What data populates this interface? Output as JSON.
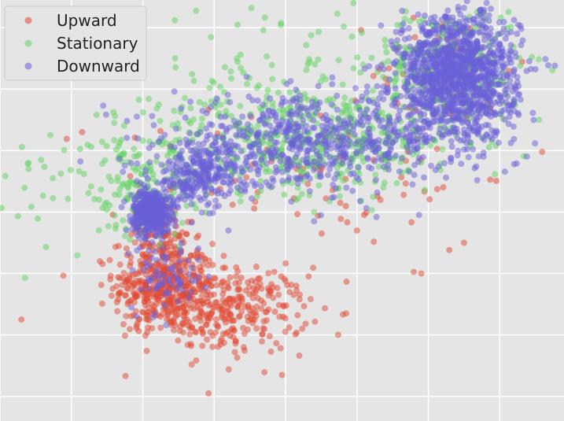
{
  "chart_data": {
    "type": "scatter",
    "title": "",
    "xlabel": "",
    "ylabel": "",
    "xlim": [
      -1.0,
      6.9
    ],
    "ylim": [
      -4.4,
      2.45
    ],
    "grid": true,
    "legend": {
      "placement": "top-left",
      "entries": [
        "Upward",
        "Stationary",
        "Downward"
      ]
    },
    "series": [
      {
        "name": "Upward",
        "color": "#e24a33",
        "clusters": [
          {
            "center": [
              1.3,
              -2.2
            ],
            "spread": [
              0.35,
              0.35
            ],
            "count": 380
          },
          {
            "center": [
              2.2,
              -2.6
            ],
            "spread": [
              0.55,
              0.35
            ],
            "count": 320
          },
          {
            "center": [
              1.2,
              -1.4
            ],
            "spread": [
              0.25,
              0.35
            ],
            "count": 120
          },
          {
            "center": [
              3.5,
              -0.4
            ],
            "spread": [
              1.4,
              0.6
            ],
            "count": 70
          },
          {
            "center": [
              5.2,
              1.3
            ],
            "spread": [
              0.5,
              0.5
            ],
            "count": 45
          }
        ],
        "points": [
          [
            -0.7,
            -2.75
          ],
          [
            0.15,
            0.3
          ],
          [
            5.5,
            -1.5
          ],
          [
            4.9,
            -2.0
          ],
          [
            3.15,
            -2.2
          ],
          [
            4.0,
            -1.3
          ]
        ]
      },
      {
        "name": "Stationary",
        "color": "#5fd35f",
        "clusters": [
          {
            "center": [
              3.3,
              0.15
            ],
            "spread": [
              1.15,
              0.42
            ],
            "count": 450
          },
          {
            "center": [
              5.3,
              1.35
            ],
            "spread": [
              0.5,
              0.5
            ],
            "count": 260
          },
          {
            "center": [
              1.0,
              -0.7
            ],
            "spread": [
              0.35,
              0.35
            ],
            "count": 120
          },
          {
            "center": [
              2.8,
              1.1
            ],
            "spread": [
              1.1,
              0.7
            ],
            "count": 110
          },
          {
            "center": [
              0.3,
              -0.5
            ],
            "spread": [
              0.8,
              0.6
            ],
            "count": 50
          }
        ],
        "points": [
          [
            -0.6,
            -0.2
          ],
          [
            -0.6,
            -0.3
          ],
          [
            0.6,
            0.45
          ],
          [
            6.55,
            0.5
          ],
          [
            3.95,
            2.4
          ],
          [
            4.4,
            1.7
          ],
          [
            3.4,
            -1.0
          ]
        ]
      },
      {
        "name": "Downward",
        "color": "#6a5fd8",
        "clusters": [
          {
            "center": [
              1.12,
              -1.0
            ],
            "spread": [
              0.13,
              0.17
            ],
            "count": 520
          },
          {
            "center": [
              1.8,
              -0.4
            ],
            "spread": [
              0.35,
              0.25
            ],
            "count": 280
          },
          {
            "center": [
              3.3,
              0.15
            ],
            "spread": [
              0.95,
              0.35
            ],
            "count": 600
          },
          {
            "center": [
              5.4,
              1.2
            ],
            "spread": [
              0.42,
              0.52
            ],
            "count": 1300
          },
          {
            "center": [
              1.35,
              -2.0
            ],
            "spread": [
              0.25,
              0.3
            ],
            "count": 80
          }
        ],
        "points": [
          [
            3.4,
            -1.15
          ],
          [
            5.2,
            2.0
          ],
          [
            5.7,
            0.3
          ],
          [
            2.2,
            -1.3
          ]
        ]
      }
    ]
  }
}
